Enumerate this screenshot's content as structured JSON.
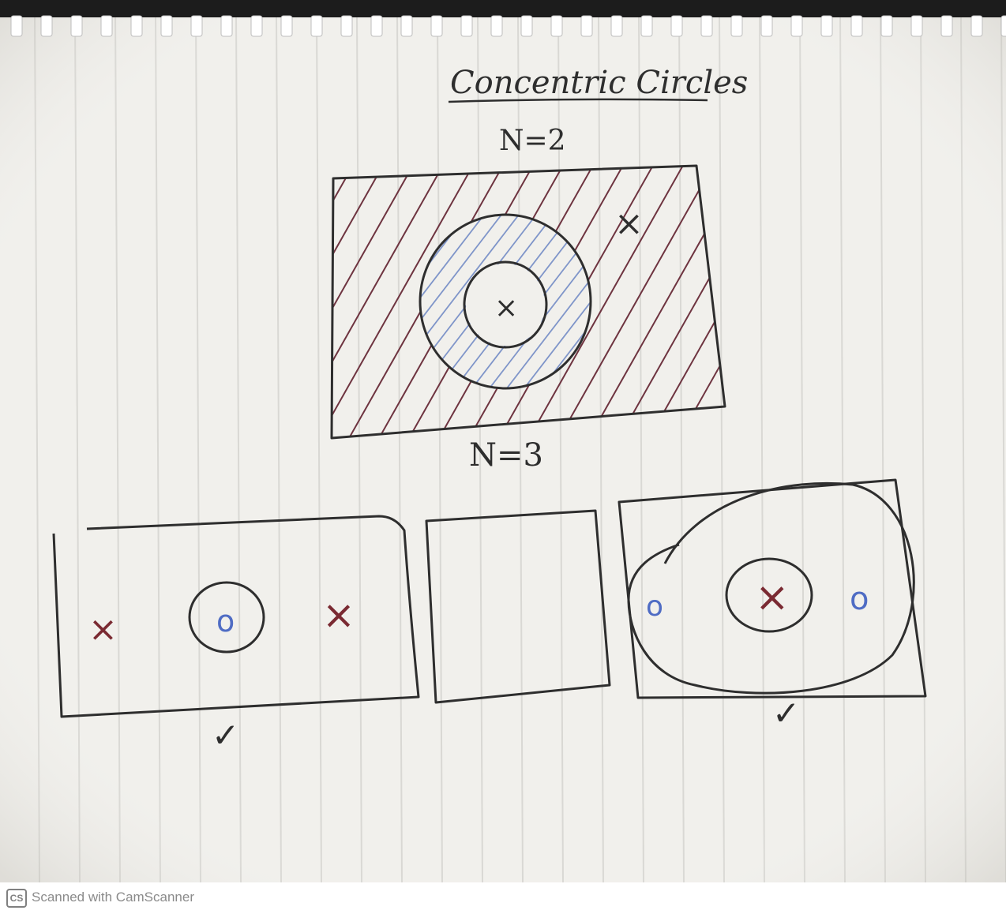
{
  "notebook": {
    "title": "Concentric Circles",
    "diagram_n2": {
      "label": "N=2",
      "outer_label": "×",
      "inner_label": "×"
    },
    "diagram_n3": {
      "label": "N=3",
      "panel_left": {
        "left_mark": "×",
        "center_mark": "o",
        "right_mark": "×",
        "check": "✓"
      },
      "panel_right": {
        "left_mark": "o",
        "center_mark": "×",
        "right_mark": "o",
        "check": "✓"
      }
    }
  },
  "footer": {
    "logo": "CS",
    "text": "Scanned with CamScanner"
  },
  "colors": {
    "paper": "#f1f0ec",
    "rule_line": "#d9d8d4",
    "ink": "#2e2e2e",
    "red_ink": "#7a2a32",
    "blue_ink": "#4f6cc4",
    "hatch_red": "#6e3440",
    "hatch_blue": "#7f95c9"
  },
  "icons": {
    "spiral": "spiral-binding",
    "cs": "camscanner-logo"
  }
}
